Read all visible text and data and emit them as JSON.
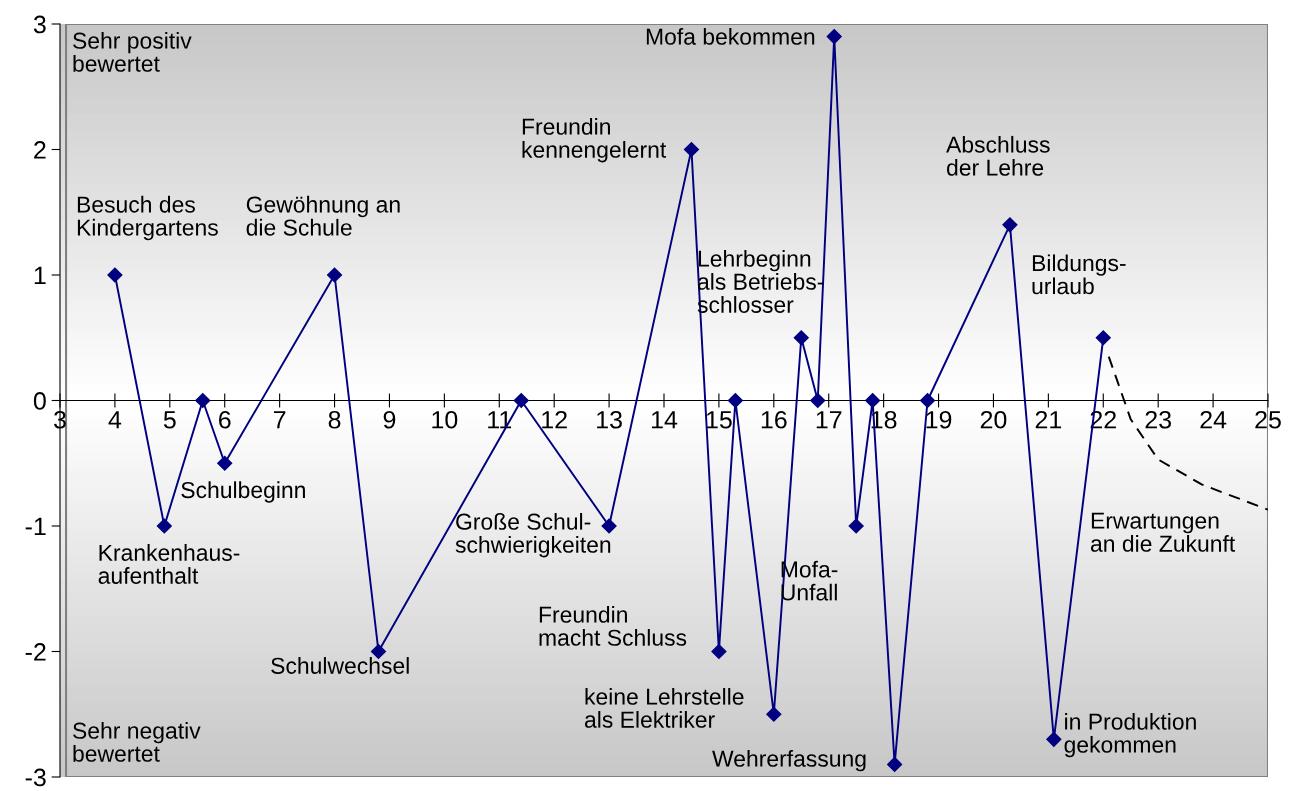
{
  "chart_data": {
    "type": "line",
    "x": [
      4,
      4.9,
      5.6,
      6.0,
      8.0,
      8.8,
      11.4,
      13.0,
      14.5,
      15.0,
      15.3,
      16.0,
      16.5,
      16.8,
      17.1,
      17.5,
      17.8,
      18.2,
      18.8,
      20.3,
      21.1,
      22.0
    ],
    "series": [
      {
        "color": "#000080",
        "marker": "diamond",
        "line_style": "solid",
        "values": [
          1,
          -1,
          0,
          -0.5,
          1,
          -2,
          0,
          -1,
          2,
          -2,
          0,
          -2.5,
          0.5,
          0,
          2.9,
          -1,
          0,
          -2.9,
          0,
          1.4,
          -2.7,
          0.5
        ]
      },
      {
        "color": "#000000",
        "marker": "none",
        "line_style": "dashed",
        "x": [
          22.1,
          22.5,
          23.0,
          23.8,
          25.0
        ],
        "values": [
          0.35,
          -0.15,
          -0.47,
          -0.67,
          -0.87
        ]
      }
    ],
    "xlim": [
      3,
      25
    ],
    "xticks": [
      3,
      4,
      5,
      6,
      7,
      8,
      9,
      10,
      11,
      12,
      13,
      14,
      15,
      16,
      17,
      18,
      19,
      20,
      21,
      22,
      23,
      24,
      25
    ],
    "ylim": [
      -3,
      3
    ],
    "yticks": [
      -3,
      -2,
      -1,
      0,
      1,
      2,
      3
    ],
    "grid": false,
    "legend": false,
    "annotations": [
      {
        "text": "Besuch des\nKindergartens",
        "x": 4,
        "y": 1
      },
      {
        "text": "Krankenhaus-\naufenthalt",
        "x": 4.9,
        "y": -1
      },
      {
        "text": "Schulbeginn",
        "x": 6.0,
        "y": -0.5
      },
      {
        "text": "Gewöhnung an\ndie Schule",
        "x": 8.0,
        "y": 1
      },
      {
        "text": "Schulwechsel",
        "x": 8.8,
        "y": -2
      },
      "Große Schul-\nschwierigkeiten",
      "Freundin\nkennengelernt",
      "Freundin\nmacht Schluss",
      "keine Lehrstelle\nals Elektriker",
      "Lehrbeginn\nals Betriebs-\nschlosser",
      "Mofa bekommen",
      {
        "text": "Mofa-\nUnfall",
        "x": 17.5,
        "y": -1
      },
      "Wehrerfassung",
      {
        "text": "Abschluss\nder Lehre",
        "x": 20.3,
        "y": 1.4
      },
      {
        "text": "in Produktion\ngekommen",
        "x": 21.1,
        "y": -2.7
      },
      {
        "text": "Bildungs-\nurlaub",
        "x": 22.0,
        "y": 0.5
      },
      "Erwartungen\nan die Zukunft",
      "Sehr positiv\nbewertet",
      "Sehr negativ\nbewertet"
    ]
  }
}
